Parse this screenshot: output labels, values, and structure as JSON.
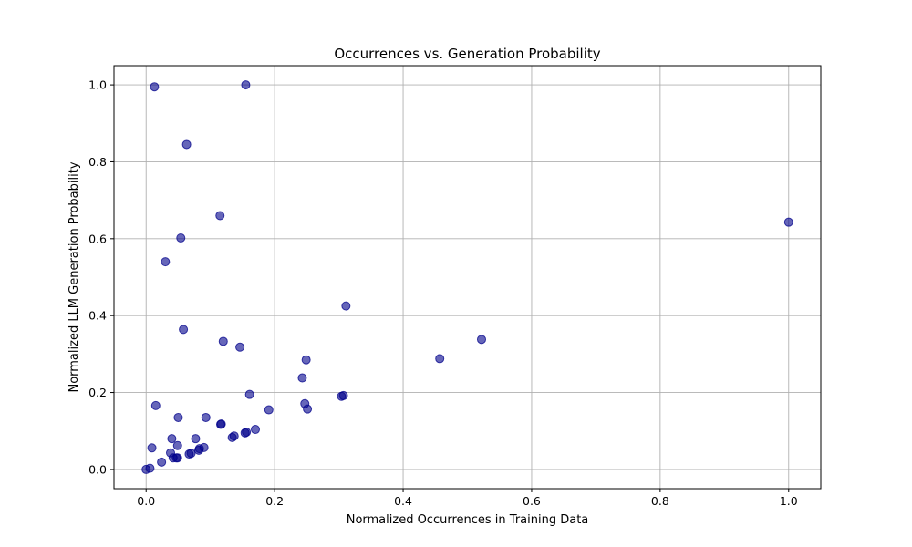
{
  "chart_data": {
    "type": "scatter",
    "title": "Occurrences vs. Generation Probability",
    "xlabel": "Normalized Occurrences in Training Data",
    "ylabel": "Normalized LLM Generation Probability",
    "xlim": [
      -0.05,
      1.05
    ],
    "ylim": [
      -0.05,
      1.05
    ],
    "xticks": [
      0.0,
      0.2,
      0.4,
      0.6,
      0.8,
      1.0
    ],
    "yticks": [
      0.0,
      0.2,
      0.4,
      0.6,
      0.8,
      1.0
    ],
    "xtick_labels": [
      "0.0",
      "0.2",
      "0.4",
      "0.6",
      "0.8",
      "1.0"
    ],
    "ytick_labels": [
      "0.0",
      "0.2",
      "0.4",
      "0.6",
      "0.8",
      "1.0"
    ],
    "grid": true,
    "marker_color": "#00008b",
    "marker_alpha": 0.6,
    "series": [
      {
        "points": [
          [
            0.0,
            0.0
          ],
          [
            0.006,
            0.003
          ],
          [
            0.009,
            0.056
          ],
          [
            0.013,
            0.995
          ],
          [
            0.015,
            0.166
          ],
          [
            0.024,
            0.019
          ],
          [
            0.03,
            0.54
          ],
          [
            0.038,
            0.043
          ],
          [
            0.04,
            0.08
          ],
          [
            0.042,
            0.03
          ],
          [
            0.047,
            0.03
          ],
          [
            0.049,
            0.03
          ],
          [
            0.049,
            0.062
          ],
          [
            0.05,
            0.135
          ],
          [
            0.054,
            0.602
          ],
          [
            0.058,
            0.364
          ],
          [
            0.063,
            0.845
          ],
          [
            0.067,
            0.04
          ],
          [
            0.07,
            0.042
          ],
          [
            0.077,
            0.08
          ],
          [
            0.082,
            0.05
          ],
          [
            0.083,
            0.054
          ],
          [
            0.09,
            0.057
          ],
          [
            0.093,
            0.135
          ],
          [
            0.115,
            0.66
          ],
          [
            0.116,
            0.117
          ],
          [
            0.117,
            0.118
          ],
          [
            0.12,
            0.333
          ],
          [
            0.134,
            0.083
          ],
          [
            0.137,
            0.087
          ],
          [
            0.146,
            0.318
          ],
          [
            0.154,
            0.095
          ],
          [
            0.155,
            1.0
          ],
          [
            0.156,
            0.097
          ],
          [
            0.161,
            0.195
          ],
          [
            0.17,
            0.104
          ],
          [
            0.191,
            0.155
          ],
          [
            0.243,
            0.238
          ],
          [
            0.247,
            0.171
          ],
          [
            0.249,
            0.285
          ],
          [
            0.251,
            0.157
          ],
          [
            0.304,
            0.19
          ],
          [
            0.307,
            0.192
          ],
          [
            0.311,
            0.425
          ],
          [
            0.457,
            0.288
          ],
          [
            0.522,
            0.338
          ],
          [
            1.0,
            0.643
          ]
        ]
      }
    ]
  }
}
